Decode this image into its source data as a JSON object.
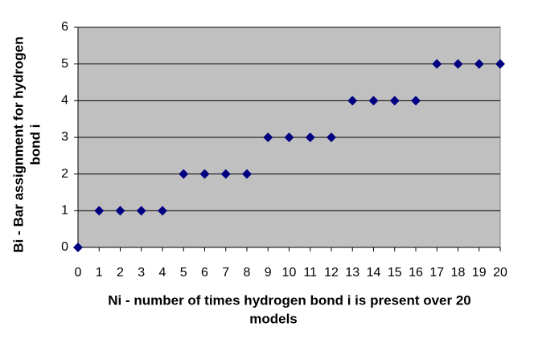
{
  "chart_data": {
    "type": "scatter",
    "xlabel": [
      "Ni - number of times hydrogen bond i is present over 20",
      "models"
    ],
    "ylabel": [
      "Bi - Bar assignment for hydrogen",
      "bond i"
    ],
    "x": [
      0,
      1,
      2,
      3,
      4,
      5,
      6,
      7,
      8,
      9,
      10,
      11,
      12,
      13,
      14,
      15,
      16,
      17,
      18,
      19,
      20
    ],
    "series": [
      {
        "color": "#000080",
        "values": [
          0,
          1,
          1,
          1,
          1,
          2,
          2,
          2,
          2,
          3,
          3,
          3,
          3,
          4,
          4,
          4,
          4,
          5,
          5,
          5,
          5
        ]
      }
    ],
    "xlim": [
      0,
      20
    ],
    "xticks": [
      0,
      1,
      2,
      3,
      4,
      5,
      6,
      7,
      8,
      9,
      10,
      11,
      12,
      13,
      14,
      15,
      16,
      17,
      18,
      19,
      20
    ],
    "ylim": [
      0,
      6
    ],
    "yticks": [
      0,
      1,
      2,
      3,
      4,
      5,
      6
    ],
    "grid": true,
    "plot_background": "#c0c0c0"
  }
}
